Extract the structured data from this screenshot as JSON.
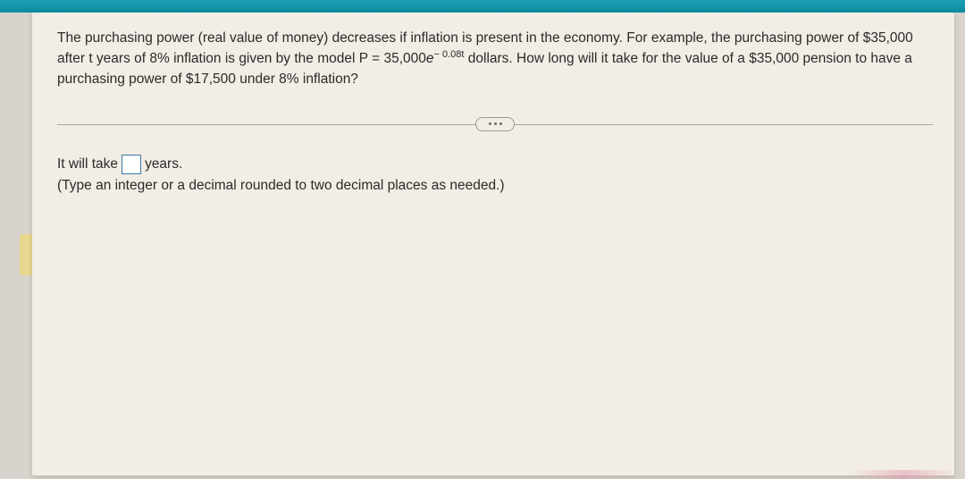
{
  "question": {
    "part1": "The purchasing power (real value of money) decreases if inflation is present in the economy. For example, the purchasing power of $35,000 after t years of 8% inflation is given by the model P = 35,000",
    "exp_base": "e",
    "exp_super_neg": "− 0.08t",
    "part2": " dollars. How long will it take for the value of a $35,000 pension to have a purchasing power of $17,500 under 8% inflation?"
  },
  "answer": {
    "prefix": "It will take",
    "suffix": "years.",
    "value": ""
  },
  "hint": "(Type an integer or a decimal rounded to two decimal places as needed.)"
}
